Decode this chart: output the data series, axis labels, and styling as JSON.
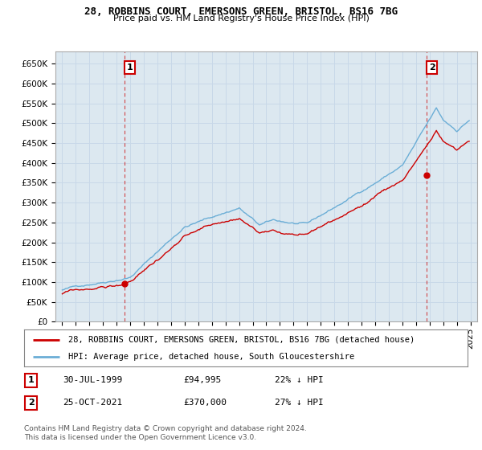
{
  "title_line1": "28, ROBBINS COURT, EMERSONS GREEN, BRISTOL, BS16 7BG",
  "title_line2": "Price paid vs. HM Land Registry's House Price Index (HPI)",
  "ylim": [
    0,
    680000
  ],
  "yticks": [
    0,
    50000,
    100000,
    150000,
    200000,
    250000,
    300000,
    350000,
    400000,
    450000,
    500000,
    550000,
    600000,
    650000
  ],
  "ytick_labels": [
    "£0",
    "£50K",
    "£100K",
    "£150K",
    "£200K",
    "£250K",
    "£300K",
    "£350K",
    "£400K",
    "£450K",
    "£500K",
    "£550K",
    "£600K",
    "£650K"
  ],
  "hpi_color": "#6baed6",
  "price_color": "#cc0000",
  "grid_color": "#c8d8e8",
  "background_color": "#ffffff",
  "plot_bg_color": "#dce8f0",
  "legend_label_price": "28, ROBBINS COURT, EMERSONS GREEN, BRISTOL, BS16 7BG (detached house)",
  "legend_label_hpi": "HPI: Average price, detached house, South Gloucestershire",
  "annotation1_date": "30-JUL-1999",
  "annotation1_price": "£94,995",
  "annotation1_note": "22% ↓ HPI",
  "annotation2_date": "25-OCT-2021",
  "annotation2_price": "£370,000",
  "annotation2_note": "27% ↓ HPI",
  "footer": "Contains HM Land Registry data © Crown copyright and database right 2024.\nThis data is licensed under the Open Government Licence v3.0.",
  "xlim": [
    1994.5,
    2025.5
  ],
  "xticks": [
    1995,
    1996,
    1997,
    1998,
    1999,
    2000,
    2001,
    2002,
    2003,
    2004,
    2005,
    2006,
    2007,
    2008,
    2009,
    2010,
    2011,
    2012,
    2013,
    2014,
    2015,
    2016,
    2017,
    2018,
    2019,
    2020,
    2021,
    2022,
    2023,
    2024,
    2025
  ],
  "marker1_x": 1999.58,
  "marker1_y": 94995,
  "marker2_x": 2021.79,
  "marker2_y": 370000,
  "vline1_x": 1999.58,
  "vline2_x": 2021.79
}
